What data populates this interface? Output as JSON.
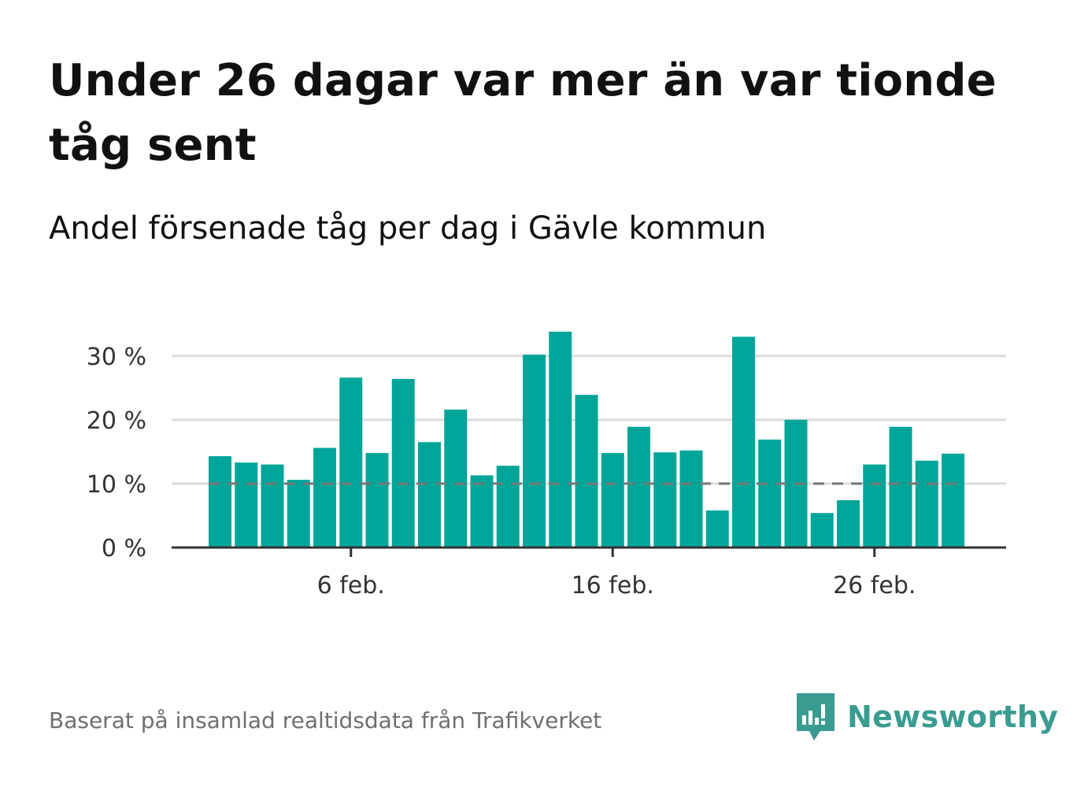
{
  "header": {
    "title": "Under 26 dagar var mer än var tionde tåg sent",
    "subtitle": "Andel försenade tåg per dag i Gävle kommun"
  },
  "footer": {
    "source": "Baserat på insamlad realtidsdata från Trafikverket",
    "brand": "Newsworthy",
    "brand_icon": "newsworthy-logo-icon"
  },
  "colors": {
    "bar": "#00a59a",
    "reference_line": "#777777",
    "grid": "#dddddd",
    "axis": "#333333",
    "brand": "#3a9c90"
  },
  "chart_data": {
    "type": "bar",
    "title": "",
    "xlabel": "",
    "ylabel": "",
    "ylim": [
      0,
      35
    ],
    "y_ticks": [
      0,
      10,
      20,
      30
    ],
    "y_tick_labels": [
      "0 %",
      "10 %",
      "20 %",
      "30 %"
    ],
    "grid": true,
    "x_tick_labels": [
      {
        "index": 5,
        "label": "6 feb."
      },
      {
        "index": 15,
        "label": "16 feb."
      },
      {
        "index": 25,
        "label": "26 feb."
      }
    ],
    "reference_line": {
      "value": 10,
      "style": "dashed"
    },
    "categories": [
      "1 feb.",
      "2 feb.",
      "3 feb.",
      "4 feb.",
      "5 feb.",
      "6 feb.",
      "7 feb.",
      "8 feb.",
      "9 feb.",
      "10 feb.",
      "11 feb.",
      "12 feb.",
      "13 feb.",
      "14 feb.",
      "15 feb.",
      "16 feb.",
      "17 feb.",
      "18 feb.",
      "19 feb.",
      "20 feb.",
      "21 feb.",
      "22 feb.",
      "23 feb.",
      "24 feb.",
      "25 feb.",
      "26 feb.",
      "27 feb.",
      "28 feb.",
      "29 feb."
    ],
    "values": [
      14.3,
      13.3,
      13.0,
      10.6,
      15.6,
      26.6,
      14.8,
      26.4,
      16.5,
      21.6,
      11.3,
      12.8,
      30.2,
      33.8,
      23.9,
      14.8,
      18.9,
      14.9,
      15.2,
      5.8,
      33.0,
      16.9,
      20.0,
      5.4,
      7.4,
      13.0,
      18.9,
      13.6,
      14.7
    ]
  }
}
